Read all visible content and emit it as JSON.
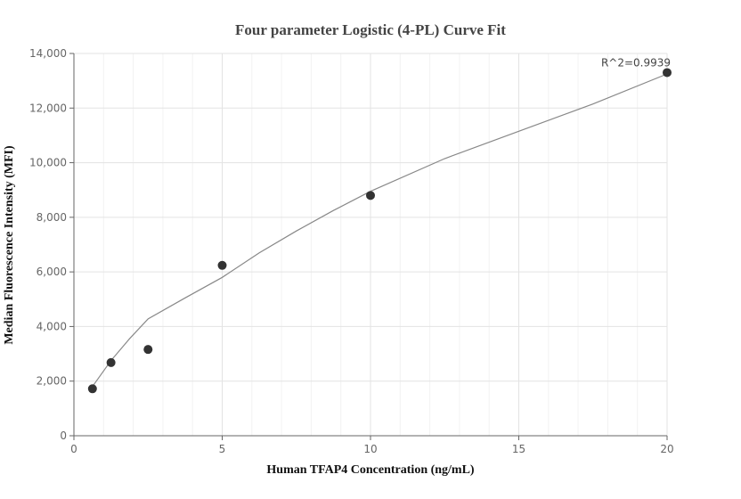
{
  "chart_data": {
    "type": "scatter",
    "title": "Four parameter Logistic (4-PL) Curve Fit",
    "xlabel": "Human TFAP4 Concentration (ng/mL)",
    "ylabel": "Median Fluorescence Intensity (MFI)",
    "xlim": [
      0,
      20
    ],
    "ylim": [
      0,
      14000
    ],
    "x_ticks": [
      0,
      5,
      10,
      15,
      20
    ],
    "x_tick_labels": [
      "0",
      "5",
      "10",
      "15",
      "20"
    ],
    "y_ticks": [
      0,
      2000,
      4000,
      6000,
      8000,
      10000,
      12000,
      14000
    ],
    "y_tick_labels": [
      "0",
      "2,000",
      "4,000",
      "6,000",
      "8,000",
      "10,000",
      "12,000",
      "14,000"
    ],
    "grid": true,
    "series": [
      {
        "type": "scatter",
        "x": [
          0.625,
          1.25,
          2.5,
          5,
          10,
          20
        ],
        "y": [
          1720,
          2680,
          3160,
          6240,
          8800,
          13300
        ],
        "color": "#333333"
      },
      {
        "type": "line",
        "x": [
          0.625,
          1.25,
          1.875,
          2.5,
          3.75,
          5,
          6.25,
          7.5,
          8.75,
          10,
          12.5,
          15,
          17.5,
          20
        ],
        "y": [
          1800,
          2750,
          3550,
          4280,
          5050,
          5800,
          6700,
          7500,
          8250,
          8950,
          10150,
          11150,
          12150,
          13250
        ],
        "color": "#888888"
      }
    ],
    "annotations": [
      {
        "text": "R^2=0.9939",
        "x": 20,
        "y": 13300
      }
    ]
  }
}
